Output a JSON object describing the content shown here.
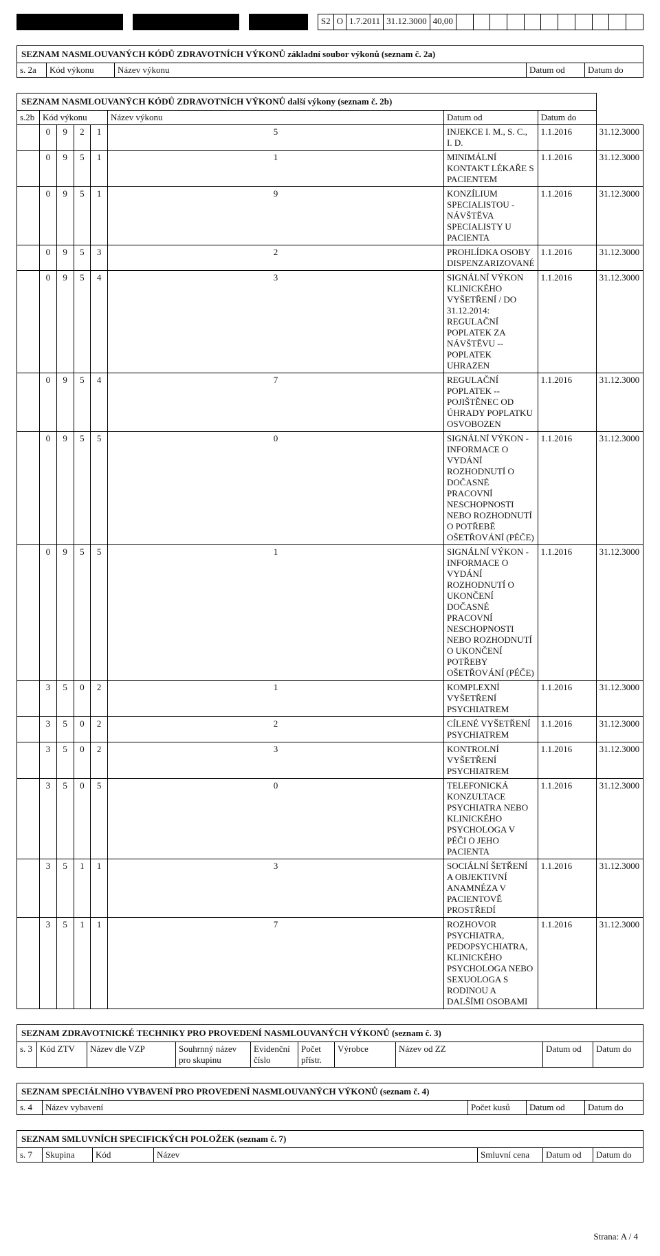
{
  "top_strip": {
    "black_groups": [
      9,
      9,
      5
    ],
    "gap_after_group": 2,
    "right_block": {
      "pre": [
        "S2",
        "O"
      ],
      "dates": [
        "1.7.2011",
        "31.12.3000"
      ],
      "amount": "40,00",
      "trailing_cells": 11
    }
  },
  "sec2a": {
    "title": "SEZNAM NASMLOUVANÝCH KÓDŮ ZDRAVOTNÍCH VÝKONŮ základní soubor výkonů (seznam č. 2a)",
    "header": [
      "s. 2a",
      "Kód výkonu",
      "Název výkonu",
      "Datum od",
      "Datum do"
    ]
  },
  "sec2b": {
    "title": "SEZNAM NASMLOUVANÝCH KÓDŮ ZDRAVOTNÍCH VÝKONŮ další výkony (seznam č. 2b)",
    "header": [
      "s.2b",
      "Kód výkonu",
      "Název výkonu",
      "Datum od",
      "Datum do"
    ],
    "rows": [
      {
        "code": [
          "0",
          "9",
          "2",
          "1",
          "5"
        ],
        "name": "INJEKCE I. M., S. C., I. D.",
        "od": "1.1.2016",
        "do": "31.12.3000"
      },
      {
        "code": [
          "0",
          "9",
          "5",
          "1",
          "1"
        ],
        "name": "MINIMÁLNÍ KONTAKT LÉKAŘE S PACIENTEM",
        "od": "1.1.2016",
        "do": "31.12.3000"
      },
      {
        "code": [
          "0",
          "9",
          "5",
          "1",
          "9"
        ],
        "name": "KONZÍLIUM SPECIALISTOU - NÁVŠTĚVA SPECIALISTY U PACIENTA",
        "od": "1.1.2016",
        "do": "31.12.3000"
      },
      {
        "code": [
          "0",
          "9",
          "5",
          "3",
          "2"
        ],
        "name": "PROHLÍDKA OSOBY DISPENZARIZOVANÉ",
        "od": "1.1.2016",
        "do": "31.12.3000"
      },
      {
        "code": [
          "0",
          "9",
          "5",
          "4",
          "3"
        ],
        "name": "SIGNÁLNÍ VÝKON KLINICKÉHO VYŠETŘENÍ / DO 31.12.2014: REGULAČNÍ POPLATEK ZA NÁVŠTĚVU -- POPLATEK UHRAZEN",
        "od": "1.1.2016",
        "do": "31.12.3000"
      },
      {
        "code": [
          "0",
          "9",
          "5",
          "4",
          "7"
        ],
        "name": "REGULAČNÍ POPLATEK -- POJIŠTĚNEC OD ÚHRADY POPLATKU OSVOBOZEN",
        "od": "1.1.2016",
        "do": "31.12.3000"
      },
      {
        "code": [
          "0",
          "9",
          "5",
          "5",
          "0"
        ],
        "name": "SIGNÁLNÍ VÝKON - INFORMACE O VYDÁNÍ ROZHODNUTÍ O DOČASNÉ PRACOVNÍ NESCHOPNOSTI NEBO ROZHODNUTÍ O POTŘEBĚ OŠETŘOVÁNÍ (PÉČE)",
        "od": "1.1.2016",
        "do": "31.12.3000"
      },
      {
        "code": [
          "0",
          "9",
          "5",
          "5",
          "1"
        ],
        "name": "SIGNÁLNÍ VÝKON - INFORMACE O VYDÁNÍ ROZHODNUTÍ O UKONČENÍ DOČASNÉ PRACOVNÍ NESCHOPNOSTI NEBO ROZHODNUTÍ O UKONČENÍ POTŘEBY OŠETŘOVÁNÍ (PÉČE)",
        "od": "1.1.2016",
        "do": "31.12.3000"
      },
      {
        "code": [
          "3",
          "5",
          "0",
          "2",
          "1"
        ],
        "name": "KOMPLEXNÍ VYŠETŘENÍ PSYCHIATREM",
        "od": "1.1.2016",
        "do": "31.12.3000"
      },
      {
        "code": [
          "3",
          "5",
          "0",
          "2",
          "2"
        ],
        "name": "CÍLENÉ VYŠETŘENÍ PSYCHIATREM",
        "od": "1.1.2016",
        "do": "31.12.3000"
      },
      {
        "code": [
          "3",
          "5",
          "0",
          "2",
          "3"
        ],
        "name": "KONTROLNÍ VYŠETŘENÍ PSYCHIATREM",
        "od": "1.1.2016",
        "do": "31.12.3000"
      },
      {
        "code": [
          "3",
          "5",
          "0",
          "5",
          "0"
        ],
        "name": "TELEFONICKÁ KONZULTACE PSYCHIATRA NEBO KLINICKÉHO PSYCHOLOGA V PÉČI O JEHO PACIENTA",
        "od": "1.1.2016",
        "do": "31.12.3000"
      },
      {
        "code": [
          "3",
          "5",
          "1",
          "1",
          "3"
        ],
        "name": "SOCIÁLNÍ ŠETŘENÍ A OBJEKTIVNÍ ANAMNÉZA V PACIENTOVĚ PROSTŘEDÍ",
        "od": "1.1.2016",
        "do": "31.12.3000"
      },
      {
        "code": [
          "3",
          "5",
          "1",
          "1",
          "7"
        ],
        "name": "ROZHOVOR PSYCHIATRA, PEDOPSYCHIATRA, KLINICKÉHO PSYCHOLOGA NEBO SEXUOLOGA S RODINOU A DALŠÍMI OSOBAMI",
        "od": "1.1.2016",
        "do": "31.12.3000"
      }
    ]
  },
  "sec3": {
    "title": "SEZNAM ZDRAVOTNICKÉ TECHNIKY PRO PROVEDENÍ NASMLOUVANÝCH VÝKONŮ (seznam č. 3)",
    "header": [
      "s. 3",
      "Kód ZTV",
      "Název dle VZP",
      "Souhrnný název pro skupinu",
      "Evidenční číslo",
      "Počet přístr.",
      "Výrobce",
      "Název od ZZ",
      "Datum od",
      "Datum do"
    ]
  },
  "sec4": {
    "title": "SEZNAM SPECIÁLNÍHO VYBAVENÍ PRO PROVEDENÍ NASMLOUVANÝCH VÝKONŮ (seznam č. 4)",
    "header": [
      "s. 4",
      "Název vybavení",
      "Počet kusů",
      "Datum od",
      "Datum do"
    ]
  },
  "sec7": {
    "title": "SEZNAM SMLUVNÍCH SPECIFICKÝCH POLOŽEK (seznam č. 7)",
    "header": [
      "s. 7",
      "Skupina",
      "Kód",
      "Název",
      "Smluvní cena",
      "Datum od",
      "Datum do"
    ]
  },
  "footer": "Strana: A / 4"
}
